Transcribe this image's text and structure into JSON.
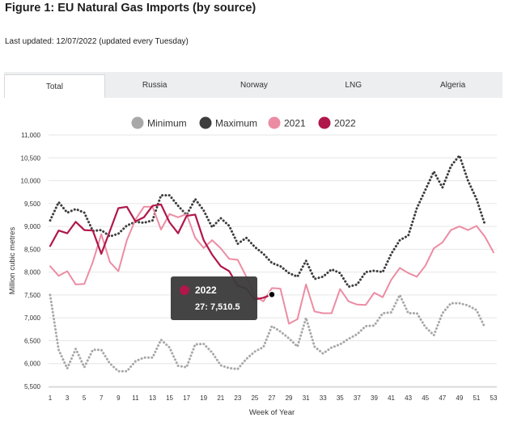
{
  "page": {
    "title": "Figure 1: EU Natural Gas Imports (by source)",
    "last_updated": "Last updated: 12/07/2022 (updated every Tuesday)"
  },
  "tabs": [
    {
      "label": "Total",
      "active": true
    },
    {
      "label": "Russia",
      "active": false
    },
    {
      "label": "Norway",
      "active": false
    },
    {
      "label": "LNG",
      "active": false
    },
    {
      "label": "Algeria",
      "active": false
    }
  ],
  "tooltip": {
    "series": "2022",
    "text": "27: 7,510.5",
    "color": "#b0174a"
  },
  "chart_data": {
    "type": "line",
    "xlabel": "Week of Year",
    "ylabel": "Million cubic metres",
    "xlim": [
      1,
      53
    ],
    "ylim": [
      5500,
      11000
    ],
    "x_ticks": [
      "1",
      "3",
      "5",
      "7",
      "9",
      "11",
      "13",
      "15",
      "17",
      "19",
      "21",
      "23",
      "25",
      "27",
      "29",
      "31",
      "33",
      "35",
      "37",
      "39",
      "41",
      "43",
      "45",
      "47",
      "49",
      "51",
      "53"
    ],
    "y_ticks": [
      "5,500",
      "6,000",
      "6,500",
      "7,000",
      "7,500",
      "8,000",
      "8,500",
      "9,000",
      "9,500",
      "10,000",
      "10,500",
      "11,000"
    ],
    "legend_position": "top",
    "series": [
      {
        "name": "Minimum",
        "color": "#a8a8a8",
        "style": "dotted",
        "x": [
          1,
          2,
          3,
          4,
          5,
          6,
          7,
          8,
          9,
          10,
          11,
          12,
          13,
          14,
          15,
          16,
          17,
          18,
          19,
          20,
          21,
          22,
          23,
          24,
          25,
          26,
          27,
          28,
          29,
          30,
          31,
          32,
          33,
          34,
          35,
          36,
          37,
          38,
          39,
          40,
          41,
          42,
          43,
          44,
          45,
          46,
          47,
          48,
          49,
          50,
          51,
          52
        ],
        "values": [
          7500,
          6300,
          5890,
          6320,
          5920,
          6300,
          6300,
          6000,
          5830,
          5830,
          6050,
          6130,
          6130,
          6520,
          6350,
          5950,
          5920,
          6420,
          6430,
          6240,
          5960,
          5900,
          5880,
          6100,
          6260,
          6360,
          6820,
          6700,
          6550,
          6370,
          7000,
          6370,
          6220,
          6350,
          6420,
          6540,
          6640,
          6820,
          6830,
          7100,
          7120,
          7500,
          7100,
          7100,
          6800,
          6620,
          7100,
          7320,
          7320,
          7270,
          7170,
          6780
        ]
      },
      {
        "name": "Maximum",
        "color": "#3d3d3d",
        "style": "dotted",
        "x": [
          1,
          2,
          3,
          4,
          5,
          6,
          7,
          8,
          9,
          10,
          11,
          12,
          13,
          14,
          15,
          16,
          17,
          18,
          19,
          20,
          21,
          22,
          23,
          24,
          25,
          26,
          27,
          28,
          29,
          30,
          31,
          32,
          33,
          34,
          35,
          36,
          37,
          38,
          39,
          40,
          41,
          42,
          43,
          44,
          45,
          46,
          47,
          48,
          49,
          50,
          51,
          52
        ],
        "values": [
          9130,
          9530,
          9300,
          9380,
          9300,
          8900,
          8920,
          8780,
          8840,
          9020,
          9100,
          9080,
          9130,
          9680,
          9680,
          9450,
          9250,
          9600,
          9350,
          8980,
          9180,
          9010,
          8620,
          8750,
          8550,
          8400,
          8200,
          8130,
          7980,
          7900,
          8250,
          7850,
          7900,
          8060,
          7980,
          7680,
          7730,
          8000,
          8030,
          8000,
          8400,
          8700,
          8800,
          9400,
          9800,
          10200,
          9850,
          10320,
          10550,
          10000,
          9600,
          9030
        ]
      },
      {
        "name": "2021",
        "color": "#ec8ca3",
        "style": "solid",
        "x": [
          1,
          2,
          3,
          4,
          5,
          6,
          7,
          8,
          9,
          10,
          11,
          12,
          13,
          14,
          15,
          16,
          17,
          18,
          19,
          20,
          21,
          22,
          23,
          24,
          25,
          26,
          27,
          28,
          29,
          30,
          31,
          32,
          33,
          34,
          35,
          36,
          37,
          38,
          39,
          40,
          41,
          42,
          43,
          44,
          45,
          46,
          47,
          48,
          49,
          50,
          51,
          52,
          53
        ],
        "values": [
          8130,
          7920,
          8020,
          7730,
          7740,
          8220,
          8830,
          8220,
          8020,
          8700,
          9150,
          9430,
          9430,
          8930,
          9270,
          9200,
          9270,
          8750,
          8530,
          8700,
          8520,
          8290,
          8270,
          7900,
          7480,
          7360,
          7650,
          7640,
          6870,
          6970,
          7730,
          7140,
          7100,
          7100,
          7630,
          7360,
          7290,
          7280,
          7550,
          7450,
          7830,
          8090,
          7980,
          7900,
          8140,
          8520,
          8650,
          8920,
          9000,
          8920,
          9010,
          8770,
          8430
        ]
      },
      {
        "name": "2022",
        "color": "#b0174a",
        "style": "solid",
        "x": [
          1,
          2,
          3,
          4,
          5,
          6,
          7,
          8,
          9,
          10,
          11,
          12,
          13,
          14,
          15,
          16,
          17,
          18,
          19,
          20,
          21,
          22,
          23,
          24,
          25,
          26,
          27
        ],
        "values": [
          8570,
          8910,
          8850,
          9100,
          8920,
          8910,
          8400,
          8900,
          9400,
          9430,
          9110,
          9200,
          9450,
          9480,
          9090,
          8850,
          9230,
          9260,
          8700,
          8380,
          8130,
          8020,
          7700,
          7640,
          7400,
          7440,
          7510
        ]
      }
    ]
  }
}
